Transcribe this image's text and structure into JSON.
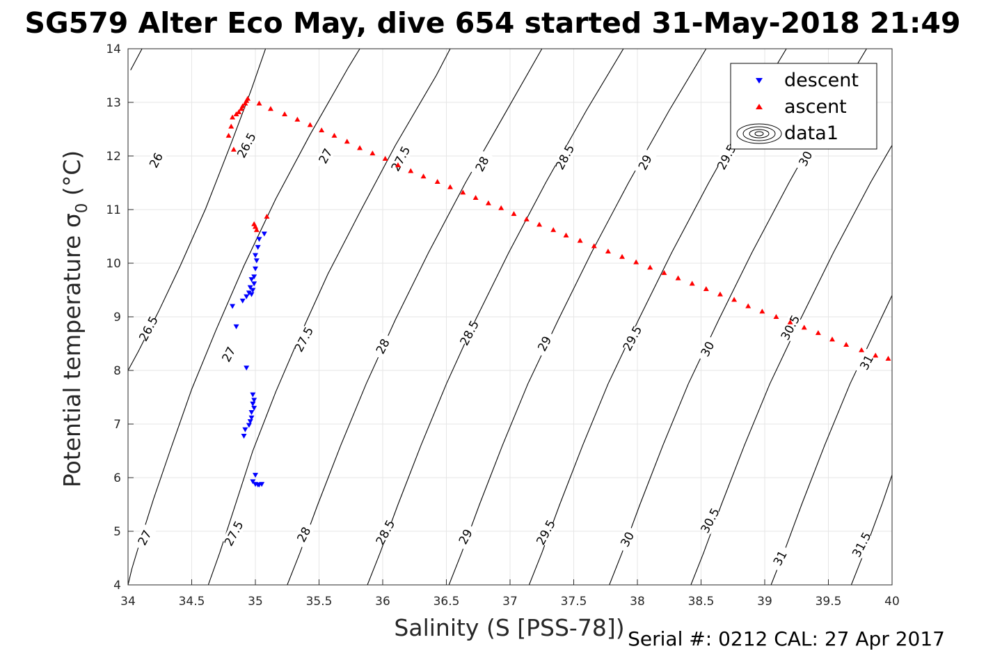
{
  "title": "SG579 Alter Eco May, dive 654 started 31-May-2018 21:49",
  "footer": "Serial #: 0212  CAL: 27 Apr 2017",
  "colors": {
    "descent": "#0000ff",
    "ascent": "#ff0000",
    "contour": "#000000",
    "grid": "#e6e6e6"
  },
  "chart_data": {
    "type": "scatter",
    "xlabel": "Salinity (S [PSS-78])",
    "ylabel": "Potential temperature σ",
    "ylabel_sub": "0",
    "ylabel_unit": " (°C)",
    "xlim": [
      34,
      40
    ],
    "ylim": [
      4,
      14
    ],
    "grid": true,
    "legend_position": "top-right",
    "xticks": [
      {
        "v": 34,
        "label": "34"
      },
      {
        "v": 34.5,
        "label": "34.5"
      },
      {
        "v": 35,
        "label": "35"
      },
      {
        "v": 35.5,
        "label": "35.5"
      },
      {
        "v": 36,
        "label": "36"
      },
      {
        "v": 36.5,
        "label": "36.5"
      },
      {
        "v": 37,
        "label": "37"
      },
      {
        "v": 37.5,
        "label": "37.5"
      },
      {
        "v": 38,
        "label": "38"
      },
      {
        "v": 38.5,
        "label": "38.5"
      },
      {
        "v": 39,
        "label": "39"
      },
      {
        "v": 39.5,
        "label": "39.5"
      },
      {
        "v": 40,
        "label": "40"
      }
    ],
    "yticks": [
      {
        "v": 4,
        "label": "4"
      },
      {
        "v": 5,
        "label": "5"
      },
      {
        "v": 6,
        "label": "6"
      },
      {
        "v": 7,
        "label": "7"
      },
      {
        "v": 8,
        "label": "8"
      },
      {
        "v": 9,
        "label": "9"
      },
      {
        "v": 10,
        "label": "10"
      },
      {
        "v": 11,
        "label": "11"
      },
      {
        "v": 12,
        "label": "12"
      },
      {
        "v": 13,
        "label": "13"
      },
      {
        "v": 14,
        "label": "14"
      }
    ],
    "legend": [
      {
        "name": "descent",
        "marker": "triangle-down",
        "color": "#0000ff"
      },
      {
        "name": "ascent",
        "marker": "triangle-up",
        "color": "#ff0000"
      },
      {
        "name": "data1",
        "marker": "contour-ellipse",
        "color": "#000000"
      }
    ],
    "series": [
      {
        "name": "descent",
        "marker": "triangle-down",
        "color": "#0000ff",
        "points": [
          [
            35.07,
            10.55
          ],
          [
            35.03,
            10.45
          ],
          [
            35.02,
            10.3
          ],
          [
            35.0,
            10.15
          ],
          [
            35.01,
            10.05
          ],
          [
            35.0,
            9.9
          ],
          [
            34.99,
            9.75
          ],
          [
            34.97,
            9.7
          ],
          [
            34.99,
            9.62
          ],
          [
            34.96,
            9.55
          ],
          [
            34.98,
            9.5
          ],
          [
            34.95,
            9.45
          ],
          [
            34.97,
            9.42
          ],
          [
            34.93,
            9.38
          ],
          [
            34.9,
            9.3
          ],
          [
            34.82,
            9.2
          ],
          [
            34.85,
            8.82
          ],
          [
            34.93,
            8.05
          ],
          [
            34.98,
            7.55
          ],
          [
            34.99,
            7.45
          ],
          [
            34.98,
            7.38
          ],
          [
            34.99,
            7.3
          ],
          [
            34.97,
            7.22
          ],
          [
            34.97,
            7.12
          ],
          [
            34.96,
            7.05
          ],
          [
            34.95,
            6.98
          ],
          [
            34.92,
            6.9
          ],
          [
            34.91,
            6.78
          ],
          [
            35.0,
            6.05
          ],
          [
            34.98,
            5.93
          ],
          [
            35.0,
            5.88
          ],
          [
            35.03,
            5.87
          ],
          [
            35.05,
            5.88
          ],
          [
            35.02,
            5.87
          ]
        ]
      },
      {
        "name": "ascent",
        "marker": "triangle-up",
        "color": "#ff0000",
        "points": [
          [
            35.09,
            10.87
          ],
          [
            34.99,
            10.73
          ],
          [
            35.0,
            10.68
          ],
          [
            35.01,
            10.62
          ],
          [
            34.83,
            12.12
          ],
          [
            34.79,
            12.38
          ],
          [
            34.81,
            12.55
          ],
          [
            34.82,
            12.72
          ],
          [
            34.85,
            12.78
          ],
          [
            34.87,
            12.82
          ],
          [
            34.89,
            12.88
          ],
          [
            34.9,
            12.93
          ],
          [
            34.92,
            12.98
          ],
          [
            34.93,
            13.03
          ],
          [
            34.94,
            13.07
          ],
          [
            35.03,
            12.98
          ],
          [
            35.12,
            12.88
          ],
          [
            35.23,
            12.78
          ],
          [
            35.33,
            12.68
          ],
          [
            35.43,
            12.58
          ],
          [
            35.52,
            12.48
          ],
          [
            35.62,
            12.38
          ],
          [
            35.72,
            12.27
          ],
          [
            35.82,
            12.15
          ],
          [
            35.92,
            12.05
          ],
          [
            36.02,
            11.95
          ],
          [
            36.12,
            11.83
          ],
          [
            36.22,
            11.72
          ],
          [
            36.32,
            11.62
          ],
          [
            36.43,
            11.52
          ],
          [
            36.53,
            11.42
          ],
          [
            36.63,
            11.32
          ],
          [
            36.73,
            11.22
          ],
          [
            36.83,
            11.12
          ],
          [
            36.93,
            11.03
          ],
          [
            37.03,
            10.92
          ],
          [
            37.13,
            10.82
          ],
          [
            37.23,
            10.72
          ],
          [
            37.34,
            10.62
          ],
          [
            37.44,
            10.52
          ],
          [
            37.55,
            10.42
          ],
          [
            37.66,
            10.32
          ],
          [
            37.77,
            10.22
          ],
          [
            37.88,
            10.12
          ],
          [
            37.99,
            10.02
          ],
          [
            38.1,
            9.92
          ],
          [
            38.21,
            9.82
          ],
          [
            38.32,
            9.72
          ],
          [
            38.43,
            9.62
          ],
          [
            38.54,
            9.52
          ],
          [
            38.65,
            9.42
          ],
          [
            38.76,
            9.32
          ],
          [
            38.87,
            9.2
          ],
          [
            38.98,
            9.1
          ],
          [
            39.09,
            9.0
          ],
          [
            39.2,
            8.9
          ],
          [
            39.31,
            8.8
          ],
          [
            39.42,
            8.7
          ],
          [
            39.53,
            8.58
          ],
          [
            39.64,
            8.48
          ],
          [
            39.76,
            8.38
          ],
          [
            39.87,
            8.28
          ],
          [
            39.97,
            8.22
          ]
        ]
      }
    ],
    "contours": [
      {
        "level": 26,
        "points": [
          [
            34.02,
            13.6
          ],
          [
            34.11,
            14.0
          ]
        ],
        "labels": [
          [
            34.22,
            11.92
          ]
        ]
      },
      {
        "level": 26.5,
        "points": [
          [
            34.0,
            8.0
          ],
          [
            34.08,
            8.35
          ],
          [
            34.24,
            9.1
          ],
          [
            34.41,
            9.95
          ],
          [
            34.61,
            11.02
          ],
          [
            34.82,
            12.3
          ],
          [
            34.97,
            13.25
          ],
          [
            35.08,
            14.0
          ]
        ],
        "labels": [
          [
            34.16,
            8.78
          ],
          [
            34.93,
            12.2
          ]
        ]
      },
      {
        "level": 27,
        "points": [
          [
            34.0,
            4.0
          ],
          [
            34.03,
            4.3
          ],
          [
            34.1,
            4.85
          ],
          [
            34.2,
            5.6
          ],
          [
            34.33,
            6.5
          ],
          [
            34.5,
            7.65
          ],
          [
            34.69,
            8.75
          ],
          [
            34.91,
            9.95
          ],
          [
            35.16,
            11.2
          ],
          [
            35.43,
            12.4
          ],
          [
            35.73,
            13.65
          ],
          [
            35.82,
            14.0
          ]
        ],
        "labels": [
          [
            34.13,
            4.88
          ],
          [
            34.79,
            8.3
          ],
          [
            35.55,
            12.0
          ]
        ]
      },
      {
        "level": 27.5,
        "points": [
          [
            34.63,
            4.0
          ],
          [
            34.72,
            4.6
          ],
          [
            34.83,
            5.4
          ],
          [
            34.98,
            6.5
          ],
          [
            35.16,
            7.6
          ],
          [
            35.35,
            8.65
          ],
          [
            35.57,
            9.8
          ],
          [
            35.82,
            10.95
          ],
          [
            36.1,
            12.2
          ],
          [
            36.42,
            13.5
          ],
          [
            36.53,
            14.0
          ]
        ],
        "labels": [
          [
            34.83,
            4.96
          ],
          [
            35.38,
            8.58
          ],
          [
            36.14,
            11.95
          ]
        ]
      },
      {
        "level": 28,
        "points": [
          [
            35.25,
            4.0
          ],
          [
            35.35,
            4.6
          ],
          [
            35.49,
            5.5
          ],
          [
            35.67,
            6.6
          ],
          [
            35.87,
            7.75
          ],
          [
            36.1,
            8.95
          ],
          [
            36.36,
            10.2
          ],
          [
            36.65,
            11.5
          ],
          [
            36.95,
            12.75
          ],
          [
            37.25,
            14.0
          ]
        ],
        "labels": [
          [
            35.38,
            4.94
          ],
          [
            36.0,
            8.45
          ],
          [
            36.78,
            11.85
          ]
        ]
      },
      {
        "level": 28.5,
        "points": [
          [
            35.88,
            4.0
          ],
          [
            35.98,
            4.6
          ],
          [
            36.12,
            5.5
          ],
          [
            36.3,
            6.6
          ],
          [
            36.5,
            7.75
          ],
          [
            36.73,
            8.95
          ],
          [
            36.99,
            10.2
          ],
          [
            37.28,
            11.5
          ],
          [
            37.6,
            12.85
          ],
          [
            37.89,
            14.0
          ]
        ],
        "labels": [
          [
            36.02,
            4.98
          ],
          [
            36.68,
            8.7
          ],
          [
            37.43,
            11.98
          ]
        ]
      },
      {
        "level": 29,
        "points": [
          [
            36.52,
            4.0
          ],
          [
            36.62,
            4.6
          ],
          [
            36.76,
            5.5
          ],
          [
            36.94,
            6.6
          ],
          [
            37.14,
            7.75
          ],
          [
            37.38,
            8.95
          ],
          [
            37.64,
            10.2
          ],
          [
            37.93,
            11.5
          ],
          [
            38.25,
            12.85
          ],
          [
            38.54,
            14.0
          ]
        ],
        "labels": [
          [
            36.65,
            4.9
          ],
          [
            37.27,
            8.5
          ],
          [
            38.06,
            11.88
          ]
        ]
      },
      {
        "level": 29.5,
        "points": [
          [
            37.15,
            4.0
          ],
          [
            37.25,
            4.6
          ],
          [
            37.39,
            5.5
          ],
          [
            37.57,
            6.6
          ],
          [
            37.77,
            7.75
          ],
          [
            38.01,
            8.95
          ],
          [
            38.27,
            10.2
          ],
          [
            38.56,
            11.5
          ],
          [
            38.88,
            12.85
          ],
          [
            39.17,
            14.0
          ]
        ],
        "labels": [
          [
            37.28,
            4.98
          ],
          [
            37.96,
            8.6
          ],
          [
            38.7,
            11.98
          ]
        ]
      },
      {
        "level": 30,
        "points": [
          [
            37.78,
            4.0
          ],
          [
            37.88,
            4.6
          ],
          [
            38.02,
            5.5
          ],
          [
            38.2,
            6.6
          ],
          [
            38.4,
            7.75
          ],
          [
            38.64,
            8.95
          ],
          [
            38.9,
            10.2
          ],
          [
            39.19,
            11.5
          ],
          [
            39.51,
            12.85
          ],
          [
            39.8,
            14.0
          ]
        ],
        "labels": [
          [
            37.92,
            4.85
          ],
          [
            38.55,
            8.4
          ],
          [
            39.32,
            11.95
          ]
        ]
      },
      {
        "level": 30.5,
        "points": [
          [
            38.42,
            4.0
          ],
          [
            38.52,
            4.6
          ],
          [
            38.66,
            5.5
          ],
          [
            38.84,
            6.6
          ],
          [
            39.04,
            7.75
          ],
          [
            39.28,
            8.95
          ],
          [
            39.54,
            10.2
          ],
          [
            39.83,
            11.5
          ],
          [
            40.0,
            12.2
          ]
        ],
        "labels": [
          [
            38.57,
            5.2
          ],
          [
            39.2,
            8.8
          ]
        ]
      },
      {
        "level": 31,
        "points": [
          [
            39.05,
            4.0
          ],
          [
            39.15,
            4.6
          ],
          [
            39.29,
            5.5
          ],
          [
            39.47,
            6.6
          ],
          [
            39.67,
            7.75
          ],
          [
            39.91,
            8.95
          ],
          [
            40.0,
            9.4
          ]
        ],
        "labels": [
          [
            39.12,
            4.5
          ],
          [
            39.8,
            8.15
          ]
        ]
      },
      {
        "level": 31.5,
        "points": [
          [
            39.68,
            4.0
          ],
          [
            39.78,
            4.6
          ],
          [
            39.92,
            5.5
          ],
          [
            40.0,
            6.05
          ]
        ],
        "labels": [
          [
            39.76,
            4.75
          ]
        ]
      }
    ]
  }
}
